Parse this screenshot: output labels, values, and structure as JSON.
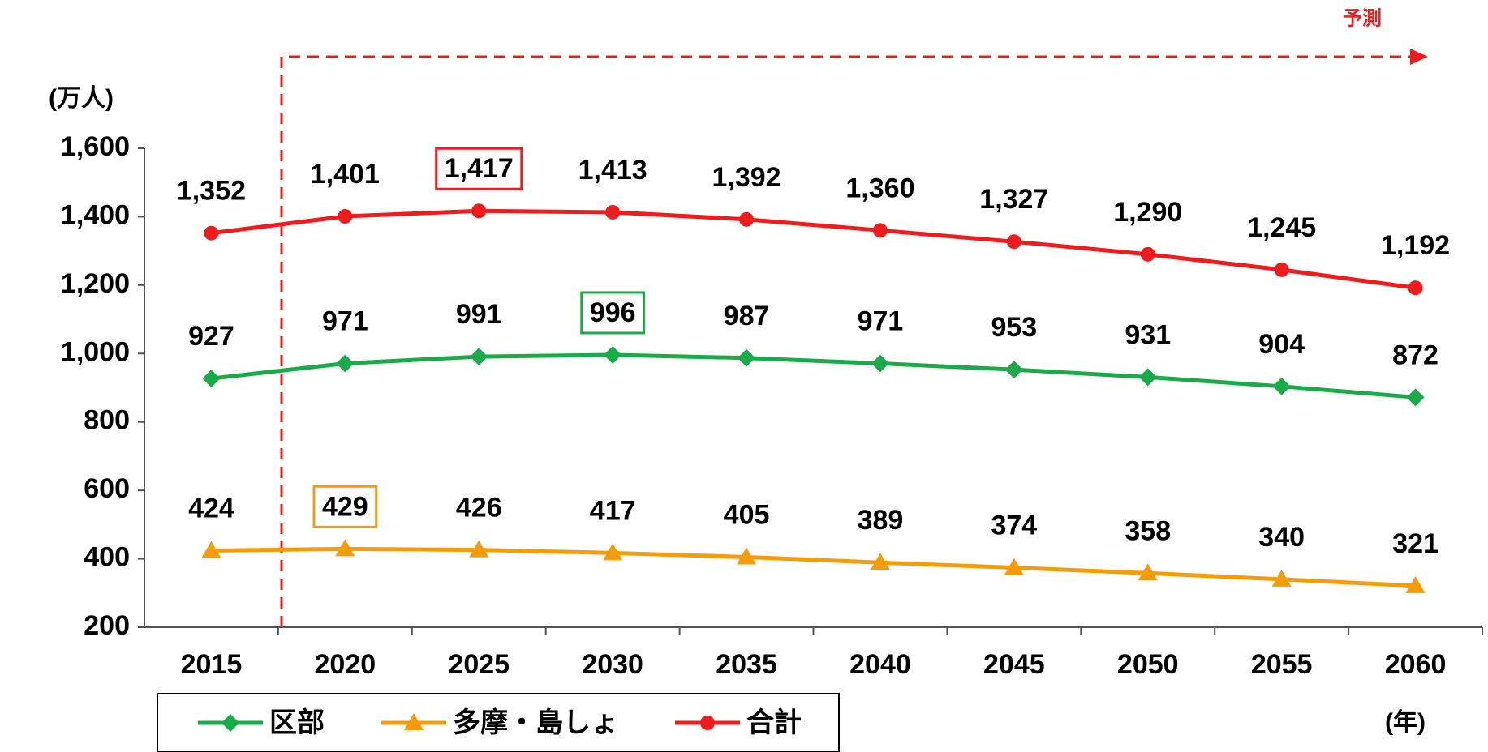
{
  "chart_data": {
    "type": "line",
    "annotations": {
      "forecast": "予測",
      "y_unit": "(万人)",
      "x_unit": "(年)"
    },
    "categories": [
      "2015",
      "2020",
      "2025",
      "2030",
      "2035",
      "2040",
      "2045",
      "2050",
      "2055",
      "2060"
    ],
    "series": [
      {
        "name": "区部",
        "color": "#1aaa4a",
        "marker": "diamond",
        "highlight_index": 3,
        "values": [
          927,
          971,
          991,
          996,
          987,
          971,
          953,
          931,
          904,
          872
        ]
      },
      {
        "name": "多摩・島しょ",
        "color": "#f59c0a",
        "marker": "triangle",
        "highlight_index": 1,
        "values": [
          424,
          429,
          426,
          417,
          405,
          389,
          374,
          358,
          340,
          321
        ]
      },
      {
        "name": "合計",
        "color": "#ee1c1c",
        "marker": "circle",
        "highlight_index": 2,
        "values": [
          1352,
          1401,
          1417,
          1413,
          1392,
          1360,
          1327,
          1290,
          1245,
          1192
        ],
        "value_labels": [
          "1,352",
          "1,401",
          "1,417",
          "1,413",
          "1,392",
          "1,360",
          "1,327",
          "1,290",
          "1,245",
          "1,192"
        ]
      }
    ],
    "ylim": [
      200,
      1600
    ],
    "yticks": [
      200,
      400,
      600,
      800,
      {
        "value": 1000,
        "label": "1,000"
      },
      {
        "value": 1200,
        "label": "1,200"
      },
      {
        "value": 1400,
        "label": "1,400"
      },
      {
        "value": 1600,
        "label": "1,600"
      }
    ],
    "grid": false
  }
}
